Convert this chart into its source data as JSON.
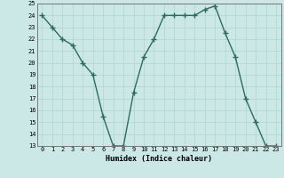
{
  "x": [
    0,
    1,
    2,
    3,
    4,
    5,
    6,
    7,
    8,
    9,
    10,
    11,
    12,
    13,
    14,
    15,
    16,
    17,
    18,
    19,
    20,
    21,
    22,
    23
  ],
  "y": [
    24,
    23,
    22,
    21.5,
    20,
    19,
    15.5,
    13,
    13,
    17.5,
    20.5,
    22,
    24,
    24,
    24,
    24,
    24.5,
    24.8,
    22.5,
    20.5,
    17,
    15,
    13,
    13
  ],
  "xlabel": "Humidex (Indice chaleur)",
  "ylim": [
    13,
    25
  ],
  "xlim": [
    -0.5,
    23.5
  ],
  "yticks": [
    13,
    14,
    15,
    16,
    17,
    18,
    19,
    20,
    21,
    22,
    23,
    24,
    25
  ],
  "xticks": [
    0,
    1,
    2,
    3,
    4,
    5,
    6,
    7,
    8,
    9,
    10,
    11,
    12,
    13,
    14,
    15,
    16,
    17,
    18,
    19,
    20,
    21,
    22,
    23
  ],
  "line_color": "#2e6b5e",
  "bg_color": "#cce8e6",
  "grid_color": "#aed4d1"
}
